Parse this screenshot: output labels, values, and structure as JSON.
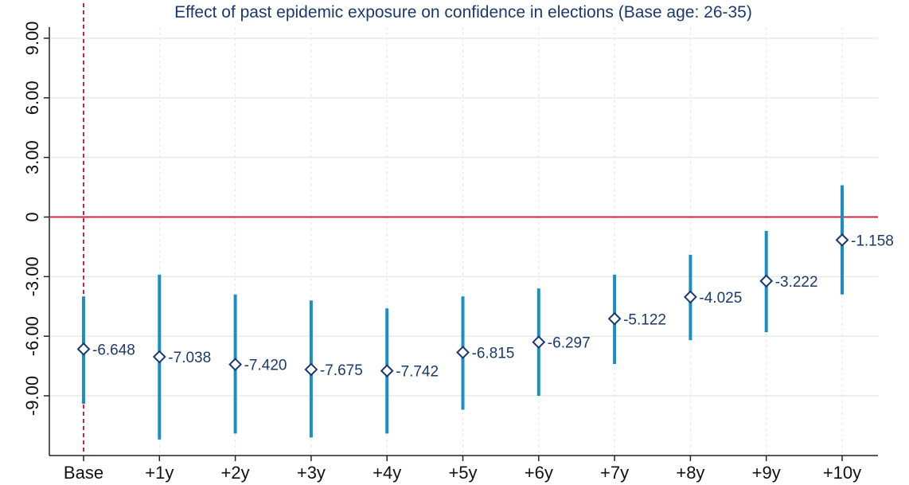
{
  "chart_data": {
    "type": "scatter",
    "title": "Effect of past epidemic exposure on confidence in elections (Base age: 26-35)",
    "xlabel": "",
    "ylabel": "",
    "categories": [
      "Base",
      "+1y",
      "+2y",
      "+3y",
      "+4y",
      "+5y",
      "+6y",
      "+7y",
      "+8y",
      "+9y",
      "+10y"
    ],
    "series": [
      {
        "values": [
          -6.648,
          -7.038,
          -7.42,
          -7.675,
          -7.742,
          -6.815,
          -6.297,
          -5.122,
          -4.025,
          -3.222,
          -1.158
        ],
        "labels": [
          "-6.648",
          "-7.038",
          "-7.420",
          "-7.675",
          "-7.742",
          "-6.815",
          "-6.297",
          "-5.122",
          "-4.025",
          "-3.222",
          "-1.158"
        ],
        "ci_low": [
          -9.4,
          -11.2,
          -10.9,
          -11.1,
          -10.9,
          -9.7,
          -9.0,
          -7.4,
          -6.2,
          -5.8,
          -3.9
        ],
        "ci_high": [
          -4.0,
          -2.9,
          -3.9,
          -4.2,
          -4.6,
          -4.0,
          -3.6,
          -2.9,
          -1.9,
          -0.7,
          1.6
        ]
      }
    ],
    "yticks": [
      9,
      6,
      3,
      0,
      -3,
      -6,
      -9
    ],
    "ytick_labels": [
      "9.00",
      "6.00",
      "3.00",
      "0",
      "-3.00",
      "-6.00",
      "-9.00"
    ],
    "ylim": [
      -11.6,
      10.2
    ],
    "reference_lines": {
      "horizontal_at": 0,
      "vertical_at_category": "Base"
    },
    "grid": true,
    "colors": {
      "marker_edge": "#1a3a6e",
      "ci": "#1b8fc4",
      "reference": "#c8283c",
      "text": "#1a3a6e",
      "grid": "#e3e3e3"
    }
  }
}
